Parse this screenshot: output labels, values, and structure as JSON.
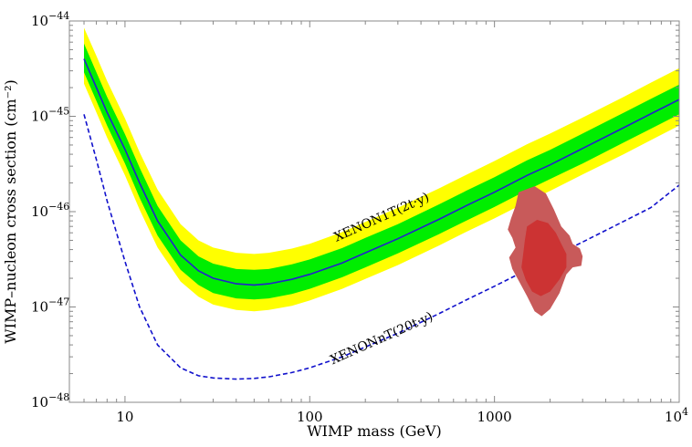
{
  "chart_data": {
    "type": "line",
    "title": "",
    "xlabel": "WIMP mass (GeV)",
    "ylabel": "WIMP–nucleon cross section (cm⁻²)",
    "x_scale": "log",
    "y_scale": "log",
    "xlim": [
      5,
      10000
    ],
    "ylim": [
      1e-48,
      1e-44
    ],
    "grid": false,
    "legend": "none",
    "x_ticks": [
      {
        "value": 10,
        "label": "10"
      },
      {
        "value": 100,
        "label": "100"
      },
      {
        "value": 1000,
        "label": "1000"
      },
      {
        "value": 10000,
        "label": "10",
        "exp": "4"
      }
    ],
    "y_ticks": [
      {
        "value": 1e-48,
        "label": "10",
        "exp": "−48"
      },
      {
        "value": 1e-47,
        "label": "10",
        "exp": "−47"
      },
      {
        "value": 1e-46,
        "label": "10",
        "exp": "−46"
      },
      {
        "value": 1e-45,
        "label": "10",
        "exp": "−45"
      },
      {
        "value": 1e-44,
        "label": "10",
        "exp": "−44"
      }
    ],
    "x": [
      6,
      7,
      8,
      10,
      12,
      15,
      20,
      25,
      30,
      40,
      50,
      60,
      80,
      100,
      150,
      200,
      300,
      500,
      700,
      1000,
      1500,
      2000,
      3000,
      5000,
      7000,
      10000
    ],
    "series": [
      {
        "name": "XENON1T(2t·y)",
        "kind": "sensitivity-band",
        "color": "#2222cc",
        "band_1sigma_color": "#00ee00",
        "band_2sigma_color": "#ffff00",
        "values": [
          4e-45,
          2e-45,
          1.1e-45,
          4.5e-46,
          2e-46,
          8e-47,
          3.5e-47,
          2.4e-47,
          2e-47,
          1.75e-47,
          1.7e-47,
          1.75e-47,
          1.95e-47,
          2.2e-47,
          2.9e-47,
          3.7e-47,
          5.2e-47,
          8.3e-47,
          1.15e-46,
          1.6e-46,
          2.4e-46,
          3.1e-46,
          4.6e-46,
          7.6e-46,
          1.06e-45,
          1.5e-45
        ],
        "lower_1sigma": [
          2.9e-45,
          1.45e-45,
          8e-46,
          3.2e-46,
          1.4e-46,
          5.6e-47,
          2.45e-47,
          1.7e-47,
          1.4e-47,
          1.23e-47,
          1.2e-47,
          1.23e-47,
          1.37e-47,
          1.55e-47,
          2.05e-47,
          2.6e-47,
          3.65e-47,
          5.8e-47,
          8e-47,
          1.12e-46,
          1.68e-46,
          2.2e-46,
          3.2e-46,
          5.3e-46,
          7.4e-46,
          1.05e-45
        ],
        "upper_1sigma": [
          5.8e-45,
          2.9e-45,
          1.6e-45,
          6.5e-46,
          2.9e-46,
          1.15e-46,
          5e-47,
          3.4e-47,
          2.85e-47,
          2.5e-47,
          2.45e-47,
          2.5e-47,
          2.8e-47,
          3.15e-47,
          4.15e-47,
          5.3e-47,
          7.4e-47,
          1.19e-46,
          1.65e-46,
          2.3e-46,
          3.45e-46,
          4.45e-46,
          6.6e-46,
          1.09e-45,
          1.52e-45,
          2.15e-45
        ],
        "lower_2sigma": [
          2.2e-45,
          1.1e-45,
          6e-46,
          2.4e-46,
          1.05e-46,
          4.2e-47,
          1.85e-47,
          1.28e-47,
          1.06e-47,
          9.3e-48,
          9e-48,
          9.3e-48,
          1.03e-47,
          1.17e-47,
          1.55e-47,
          1.97e-47,
          2.75e-47,
          4.4e-47,
          6.1e-47,
          8.5e-47,
          1.27e-46,
          1.65e-46,
          2.45e-46,
          4e-46,
          5.6e-46,
          8e-46
        ],
        "upper_2sigma": [
          8.5e-45,
          4.3e-45,
          2.35e-45,
          9.5e-46,
          4.2e-46,
          1.7e-46,
          7.4e-47,
          5e-47,
          4.2e-47,
          3.7e-47,
          3.6e-47,
          3.7e-47,
          4.1e-47,
          4.6e-47,
          6.1e-47,
          7.8e-47,
          1.1e-46,
          1.75e-46,
          2.42e-46,
          3.4e-46,
          5.1e-46,
          6.6e-46,
          9.7e-46,
          1.6e-45,
          2.25e-45,
          3.2e-45
        ]
      },
      {
        "name": "XENONnT(20t·y)",
        "kind": "sensitivity-dashed",
        "color": "#1111cc",
        "values": [
          1.05e-45,
          3.5e-46,
          1.3e-46,
          3e-47,
          1e-47,
          4e-48,
          2.3e-48,
          1.9e-48,
          1.8e-48,
          1.75e-48,
          1.78e-48,
          1.85e-48,
          2.05e-48,
          2.3e-48,
          3e-48,
          3.8e-48,
          5.3e-48,
          8.5e-48,
          1.18e-47,
          1.65e-47,
          2.45e-47,
          3.25e-47,
          4.8e-47,
          7.9e-47,
          1.1e-46,
          1.9e-46
        ]
      }
    ],
    "regions": [
      {
        "kind": "credible-region-outer",
        "color": "#c85a5a",
        "points": [
          [
            1350,
            1.6e-46
          ],
          [
            1650,
            1.85e-46
          ],
          [
            1900,
            1.55e-46
          ],
          [
            2100,
            1.05e-46
          ],
          [
            2300,
            7e-47
          ],
          [
            2550,
            5.6e-47
          ],
          [
            2650,
            4.6e-47
          ],
          [
            2900,
            4.1e-47
          ],
          [
            3000,
            3.4e-47
          ],
          [
            2950,
            2.7e-47
          ],
          [
            2650,
            2.6e-47
          ],
          [
            2450,
            2.2e-47
          ],
          [
            2250,
            1.4e-47
          ],
          [
            2000,
            9.5e-48
          ],
          [
            1800,
            8e-48
          ],
          [
            1650,
            9e-48
          ],
          [
            1500,
            1.3e-47
          ],
          [
            1350,
            1.9e-47
          ],
          [
            1250,
            2.5e-47
          ],
          [
            1200,
            3.3e-47
          ],
          [
            1300,
            4.2e-47
          ],
          [
            1250,
            5.3e-47
          ],
          [
            1180,
            6.5e-47
          ],
          [
            1230,
            8.5e-47
          ],
          [
            1300,
            1.15e-46
          ]
        ]
      },
      {
        "kind": "credible-region-inner",
        "color": "#cc3333",
        "points": [
          [
            1500,
            7e-47
          ],
          [
            1700,
            8.2e-47
          ],
          [
            1950,
            7.6e-47
          ],
          [
            2150,
            6e-47
          ],
          [
            2300,
            4.6e-47
          ],
          [
            2450,
            3.6e-47
          ],
          [
            2450,
            2.6e-47
          ],
          [
            2250,
            1.95e-47
          ],
          [
            2000,
            1.45e-47
          ],
          [
            1780,
            1.3e-47
          ],
          [
            1600,
            1.45e-47
          ],
          [
            1480,
            1.9e-47
          ],
          [
            1400,
            2.6e-47
          ],
          [
            1430,
            3.6e-47
          ],
          [
            1460,
            5e-47
          ]
        ]
      }
    ],
    "annotations": [
      {
        "text": "XENON1T(2t·y)",
        "x": 250,
        "y": 8e-47,
        "angle": -24
      },
      {
        "text": "XENONnT(20t·y)",
        "x": 250,
        "y": 4.3e-48,
        "angle": -24
      }
    ]
  }
}
